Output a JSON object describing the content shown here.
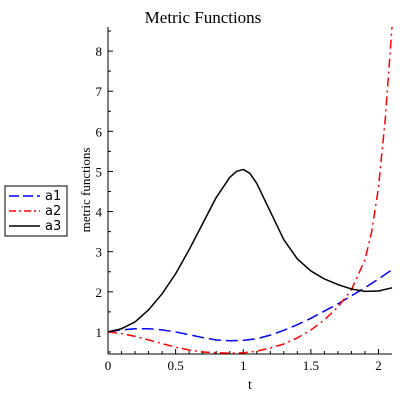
{
  "chart_data": {
    "type": "line",
    "title": "Metric Functions",
    "xlabel": "t",
    "ylabel": "metric functions",
    "xlim": [
      0,
      2.1
    ],
    "ylim": [
      0.45,
      8.6
    ],
    "x_ticks": [
      "0",
      "0.5",
      "1",
      "1.5",
      "2"
    ],
    "y_ticks": [
      "1",
      "2",
      "3",
      "4",
      "5",
      "6",
      "7",
      "8"
    ],
    "grid": false,
    "legend_position": "left-middle",
    "series": [
      {
        "name": "a1",
        "color": "#0000ff",
        "style": "long-dash",
        "x": [
          0,
          0.1,
          0.2,
          0.3,
          0.4,
          0.5,
          0.6,
          0.7,
          0.8,
          0.9,
          1.0,
          1.1,
          1.2,
          1.3,
          1.4,
          1.5,
          1.6,
          1.7,
          1.8,
          1.9,
          2.0,
          2.1
        ],
        "y": [
          1.0,
          1.05,
          1.08,
          1.08,
          1.05,
          1.0,
          0.93,
          0.86,
          0.8,
          0.78,
          0.79,
          0.83,
          0.92,
          1.04,
          1.18,
          1.34,
          1.52,
          1.7,
          1.9,
          2.1,
          2.32,
          2.55
        ]
      },
      {
        "name": "a2",
        "color": "#ff0000",
        "style": "dash-dot",
        "x": [
          0,
          0.1,
          0.2,
          0.3,
          0.4,
          0.5,
          0.6,
          0.7,
          0.8,
          0.9,
          1.0,
          1.1,
          1.2,
          1.3,
          1.4,
          1.5,
          1.6,
          1.7,
          1.8,
          1.9,
          1.95,
          2.0,
          2.05,
          2.1
        ],
        "y": [
          1.0,
          0.96,
          0.89,
          0.8,
          0.71,
          0.62,
          0.55,
          0.5,
          0.48,
          0.47,
          0.48,
          0.52,
          0.6,
          0.7,
          0.85,
          1.05,
          1.3,
          1.62,
          2.05,
          2.8,
          3.5,
          4.6,
          6.3,
          8.6
        ]
      },
      {
        "name": "a3",
        "color": "#000000",
        "style": "solid",
        "x": [
          0,
          0.1,
          0.2,
          0.3,
          0.4,
          0.5,
          0.6,
          0.7,
          0.8,
          0.9,
          0.95,
          1.0,
          1.05,
          1.1,
          1.2,
          1.3,
          1.4,
          1.5,
          1.6,
          1.7,
          1.8,
          1.9,
          2.0,
          2.1
        ],
        "y": [
          1.0,
          1.08,
          1.25,
          1.55,
          1.95,
          2.45,
          3.05,
          3.7,
          4.35,
          4.85,
          5.0,
          5.05,
          4.95,
          4.7,
          4.0,
          3.3,
          2.82,
          2.52,
          2.32,
          2.18,
          2.07,
          2.01,
          2.02,
          2.1
        ]
      }
    ]
  }
}
